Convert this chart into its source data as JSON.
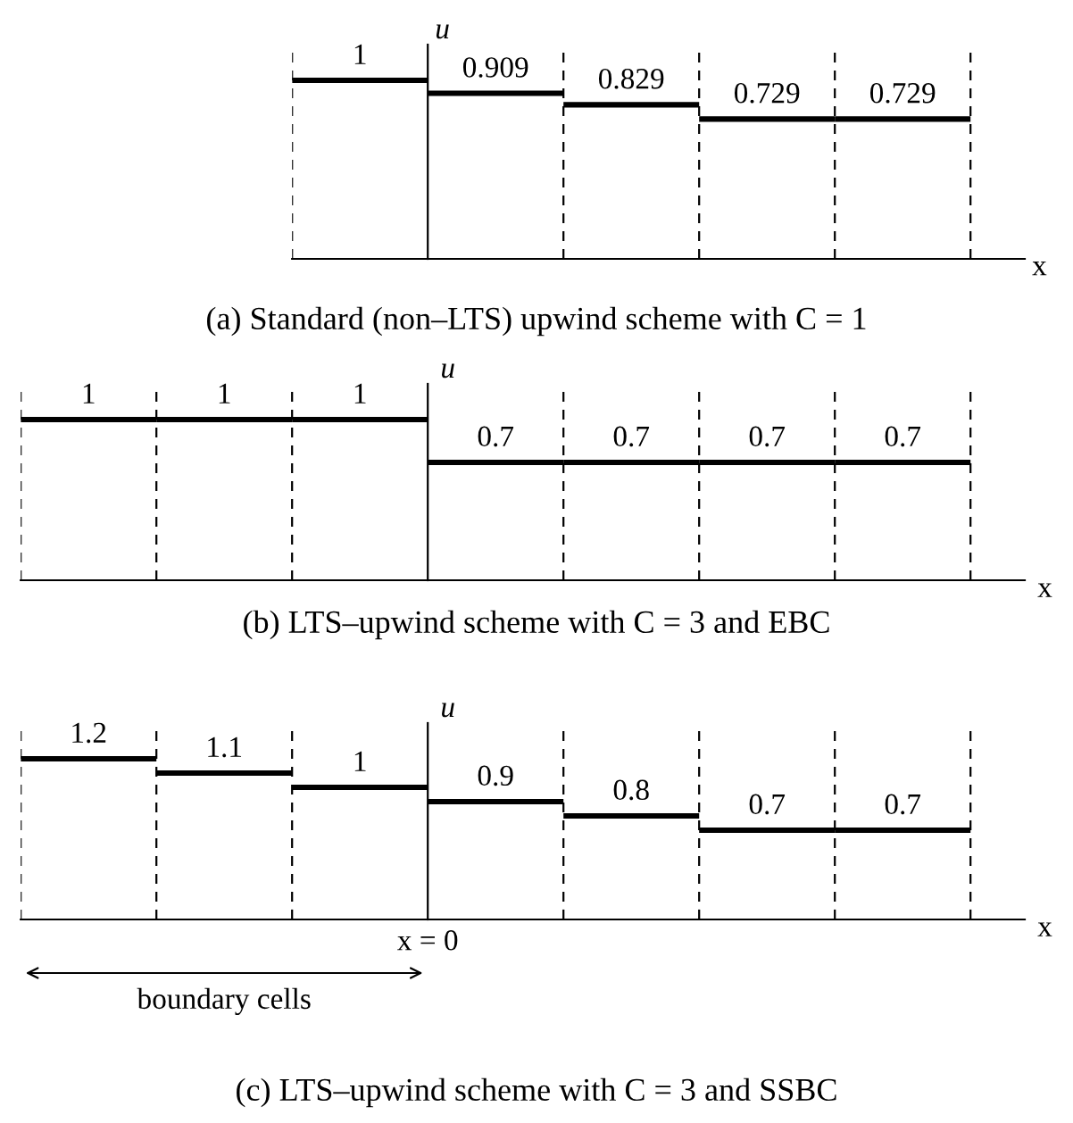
{
  "chart_data": [
    {
      "type": "other",
      "title": "(a) Standard (non–LTS) upwind scheme with C = 1",
      "xlabel": "x",
      "ylabel": "u",
      "categories": [
        null,
        null,
        null,
        null,
        null
      ],
      "values": [
        1,
        0.909,
        0.829,
        0.729,
        0.729
      ],
      "color": "#000000",
      "data_labels": true
    },
    {
      "type": "other",
      "title": "(b) LTS–upwind scheme with C = 3 and EBC",
      "xlabel": "x",
      "ylabel": "u",
      "categories": [
        null,
        null,
        null,
        null,
        null,
        null,
        null
      ],
      "values": [
        1,
        1,
        1,
        0.7,
        0.7,
        0.7,
        0.7
      ],
      "color": "#000000",
      "data_labels": true
    },
    {
      "type": "other",
      "title": "(c) LTS–upwind scheme with C = 3 and SSBC",
      "xlabel": "x",
      "ylabel": "u",
      "categories": [
        null,
        null,
        null,
        null,
        null,
        null,
        null
      ],
      "values": [
        1.2,
        1.1,
        1,
        0.9,
        0.8,
        0.7,
        0.7
      ],
      "color": "#000000",
      "data_labels": true,
      "annotations": [
        "x = 0",
        "boundary cells"
      ]
    }
  ]
}
